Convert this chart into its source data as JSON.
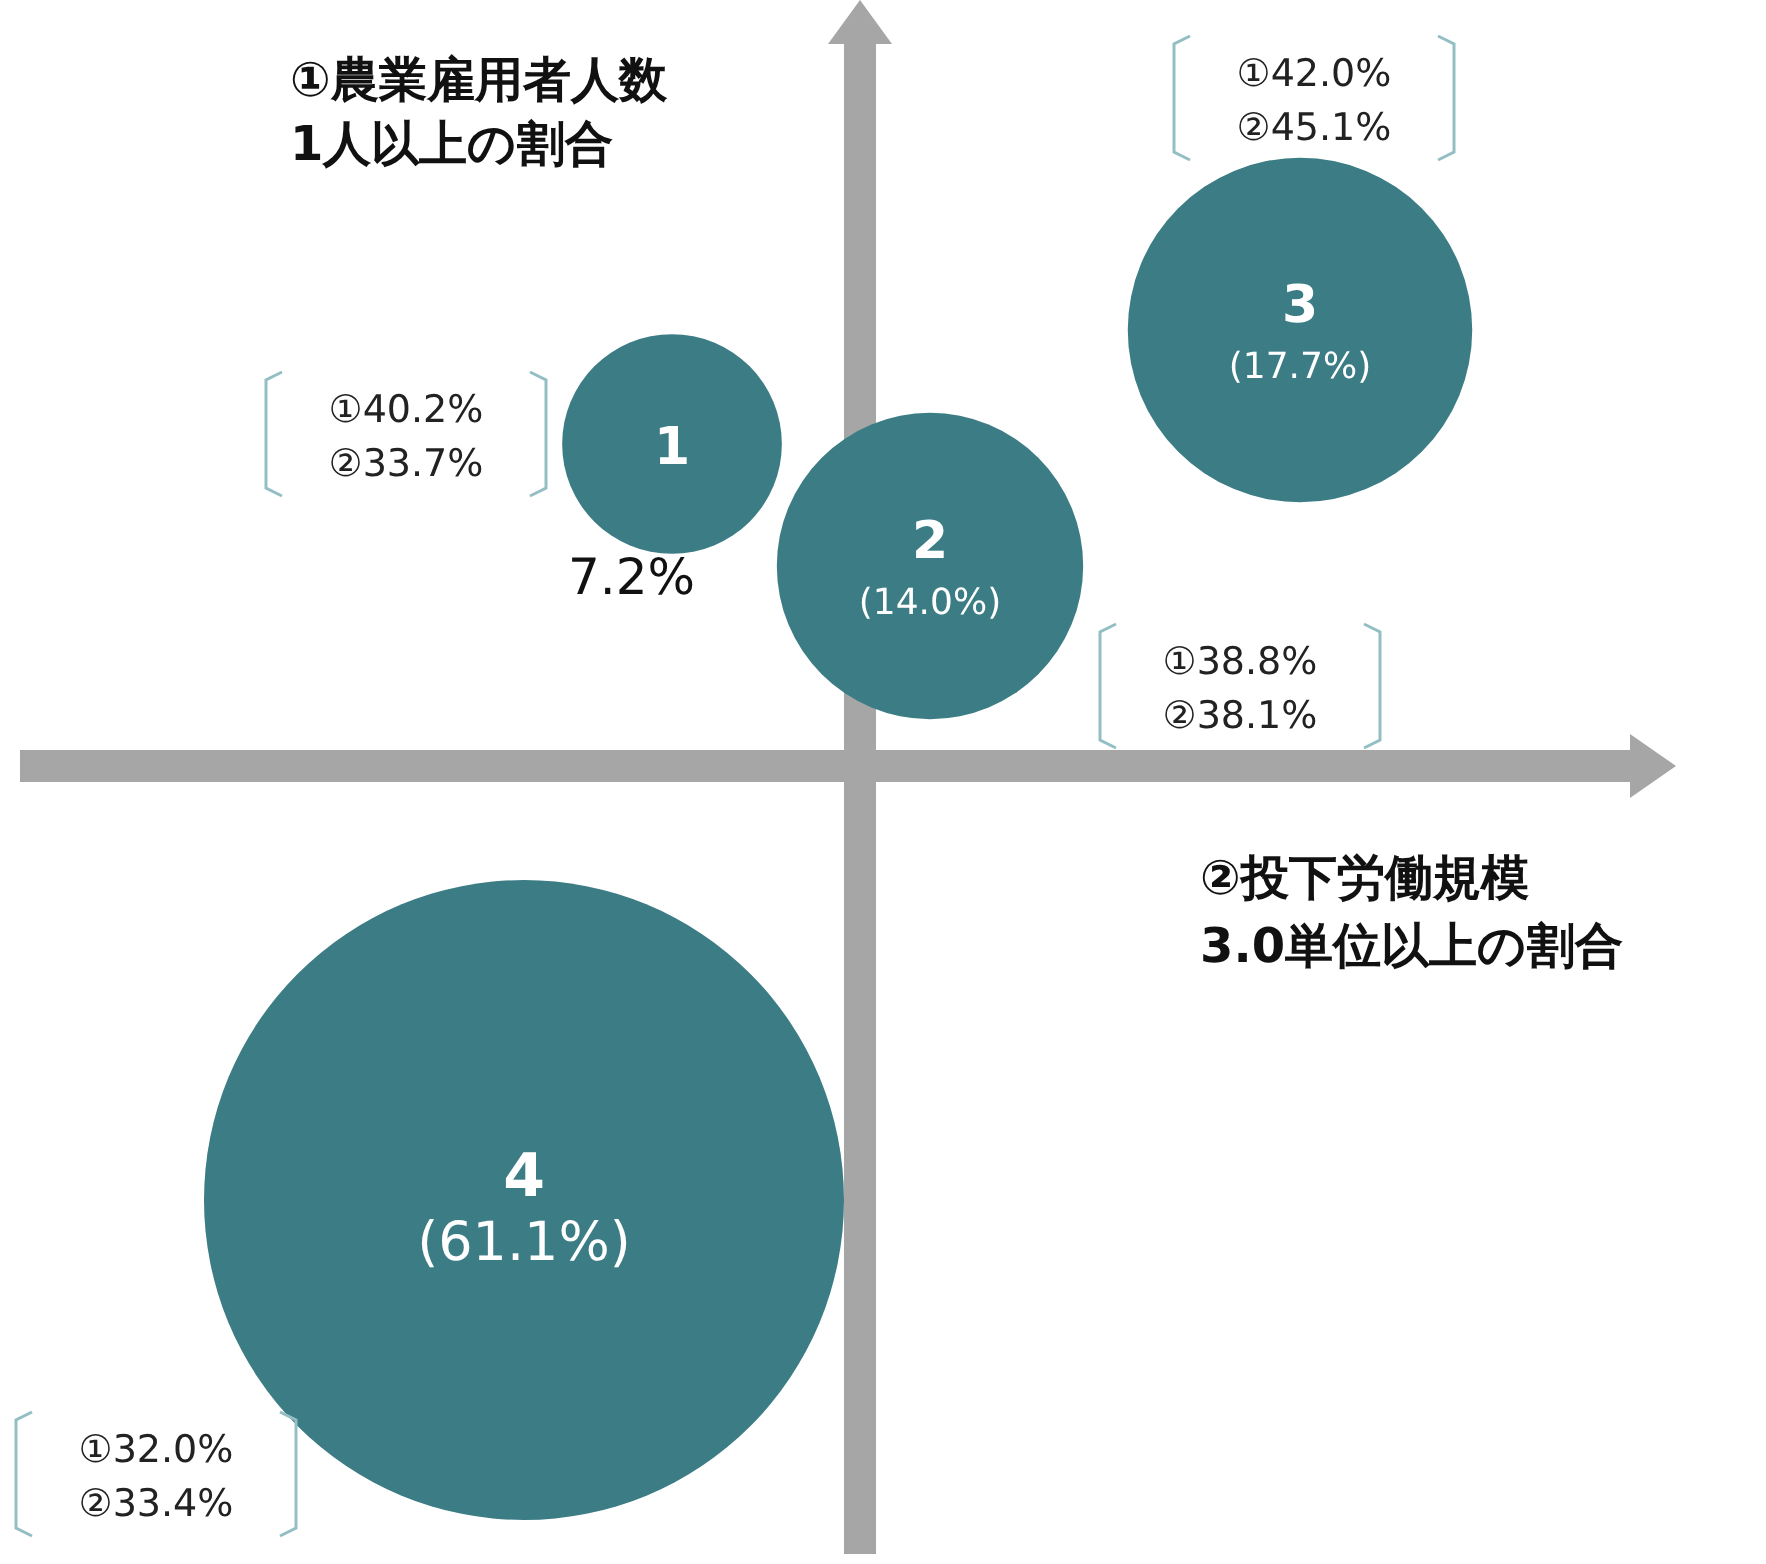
{
  "chart_data": {
    "type": "other",
    "ylabel": "①農業雇用者人数\n1人以上の割合",
    "xlabel": "②投下労働規模\n3.0単位以上の割合",
    "categories": [
      "1",
      "2",
      "3",
      "4"
    ],
    "values": [
      7.2,
      14.0,
      17.7,
      61.1
    ],
    "value_labels": [
      "7.2%",
      "(14.0%)",
      "(17.7%)",
      "(61.1%)"
    ],
    "colors": [
      "#3b7c85",
      "#3b7c85",
      "#3b7c85",
      "#3b7c85"
    ],
    "annotations": [
      "①40.2%\n②33.7%",
      "①38.8%\n②38.1%",
      "①42.0%\n②45.1%",
      "①32.0%\n②33.4%"
    ]
  }
}
